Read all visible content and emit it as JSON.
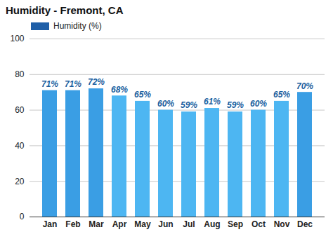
{
  "chart_data": {
    "type": "bar",
    "title": "Humidity - Fremont, CA",
    "categories": [
      "Jan",
      "Feb",
      "Mar",
      "Apr",
      "May",
      "Jun",
      "Jul",
      "Aug",
      "Sep",
      "Oct",
      "Nov",
      "Dec"
    ],
    "series": [
      {
        "name": "Humidity (%)",
        "color": "#1f5fa8",
        "values": [
          71,
          71,
          72,
          68,
          65,
          60,
          59,
          61,
          59,
          60,
          65,
          70
        ],
        "value_labels": [
          "71%",
          "71%",
          "72%",
          "68%",
          "65%",
          "60%",
          "59%",
          "61%",
          "59%",
          "60%",
          "65%",
          "70%"
        ],
        "colors": [
          "#3a9ee4",
          "#3a9ee4",
          "#3a9ee4",
          "#4db6f2",
          "#4db6f2",
          "#4db6f2",
          "#4db6f2",
          "#4db6f2",
          "#4db6f2",
          "#4db6f2",
          "#4db6f2",
          "#3a9ee4"
        ]
      }
    ],
    "ylim": [
      0,
      100
    ],
    "yticks": [
      0,
      20,
      40,
      60,
      80,
      100
    ],
    "grid": true,
    "legend": "top-left",
    "data_labels": true
  }
}
